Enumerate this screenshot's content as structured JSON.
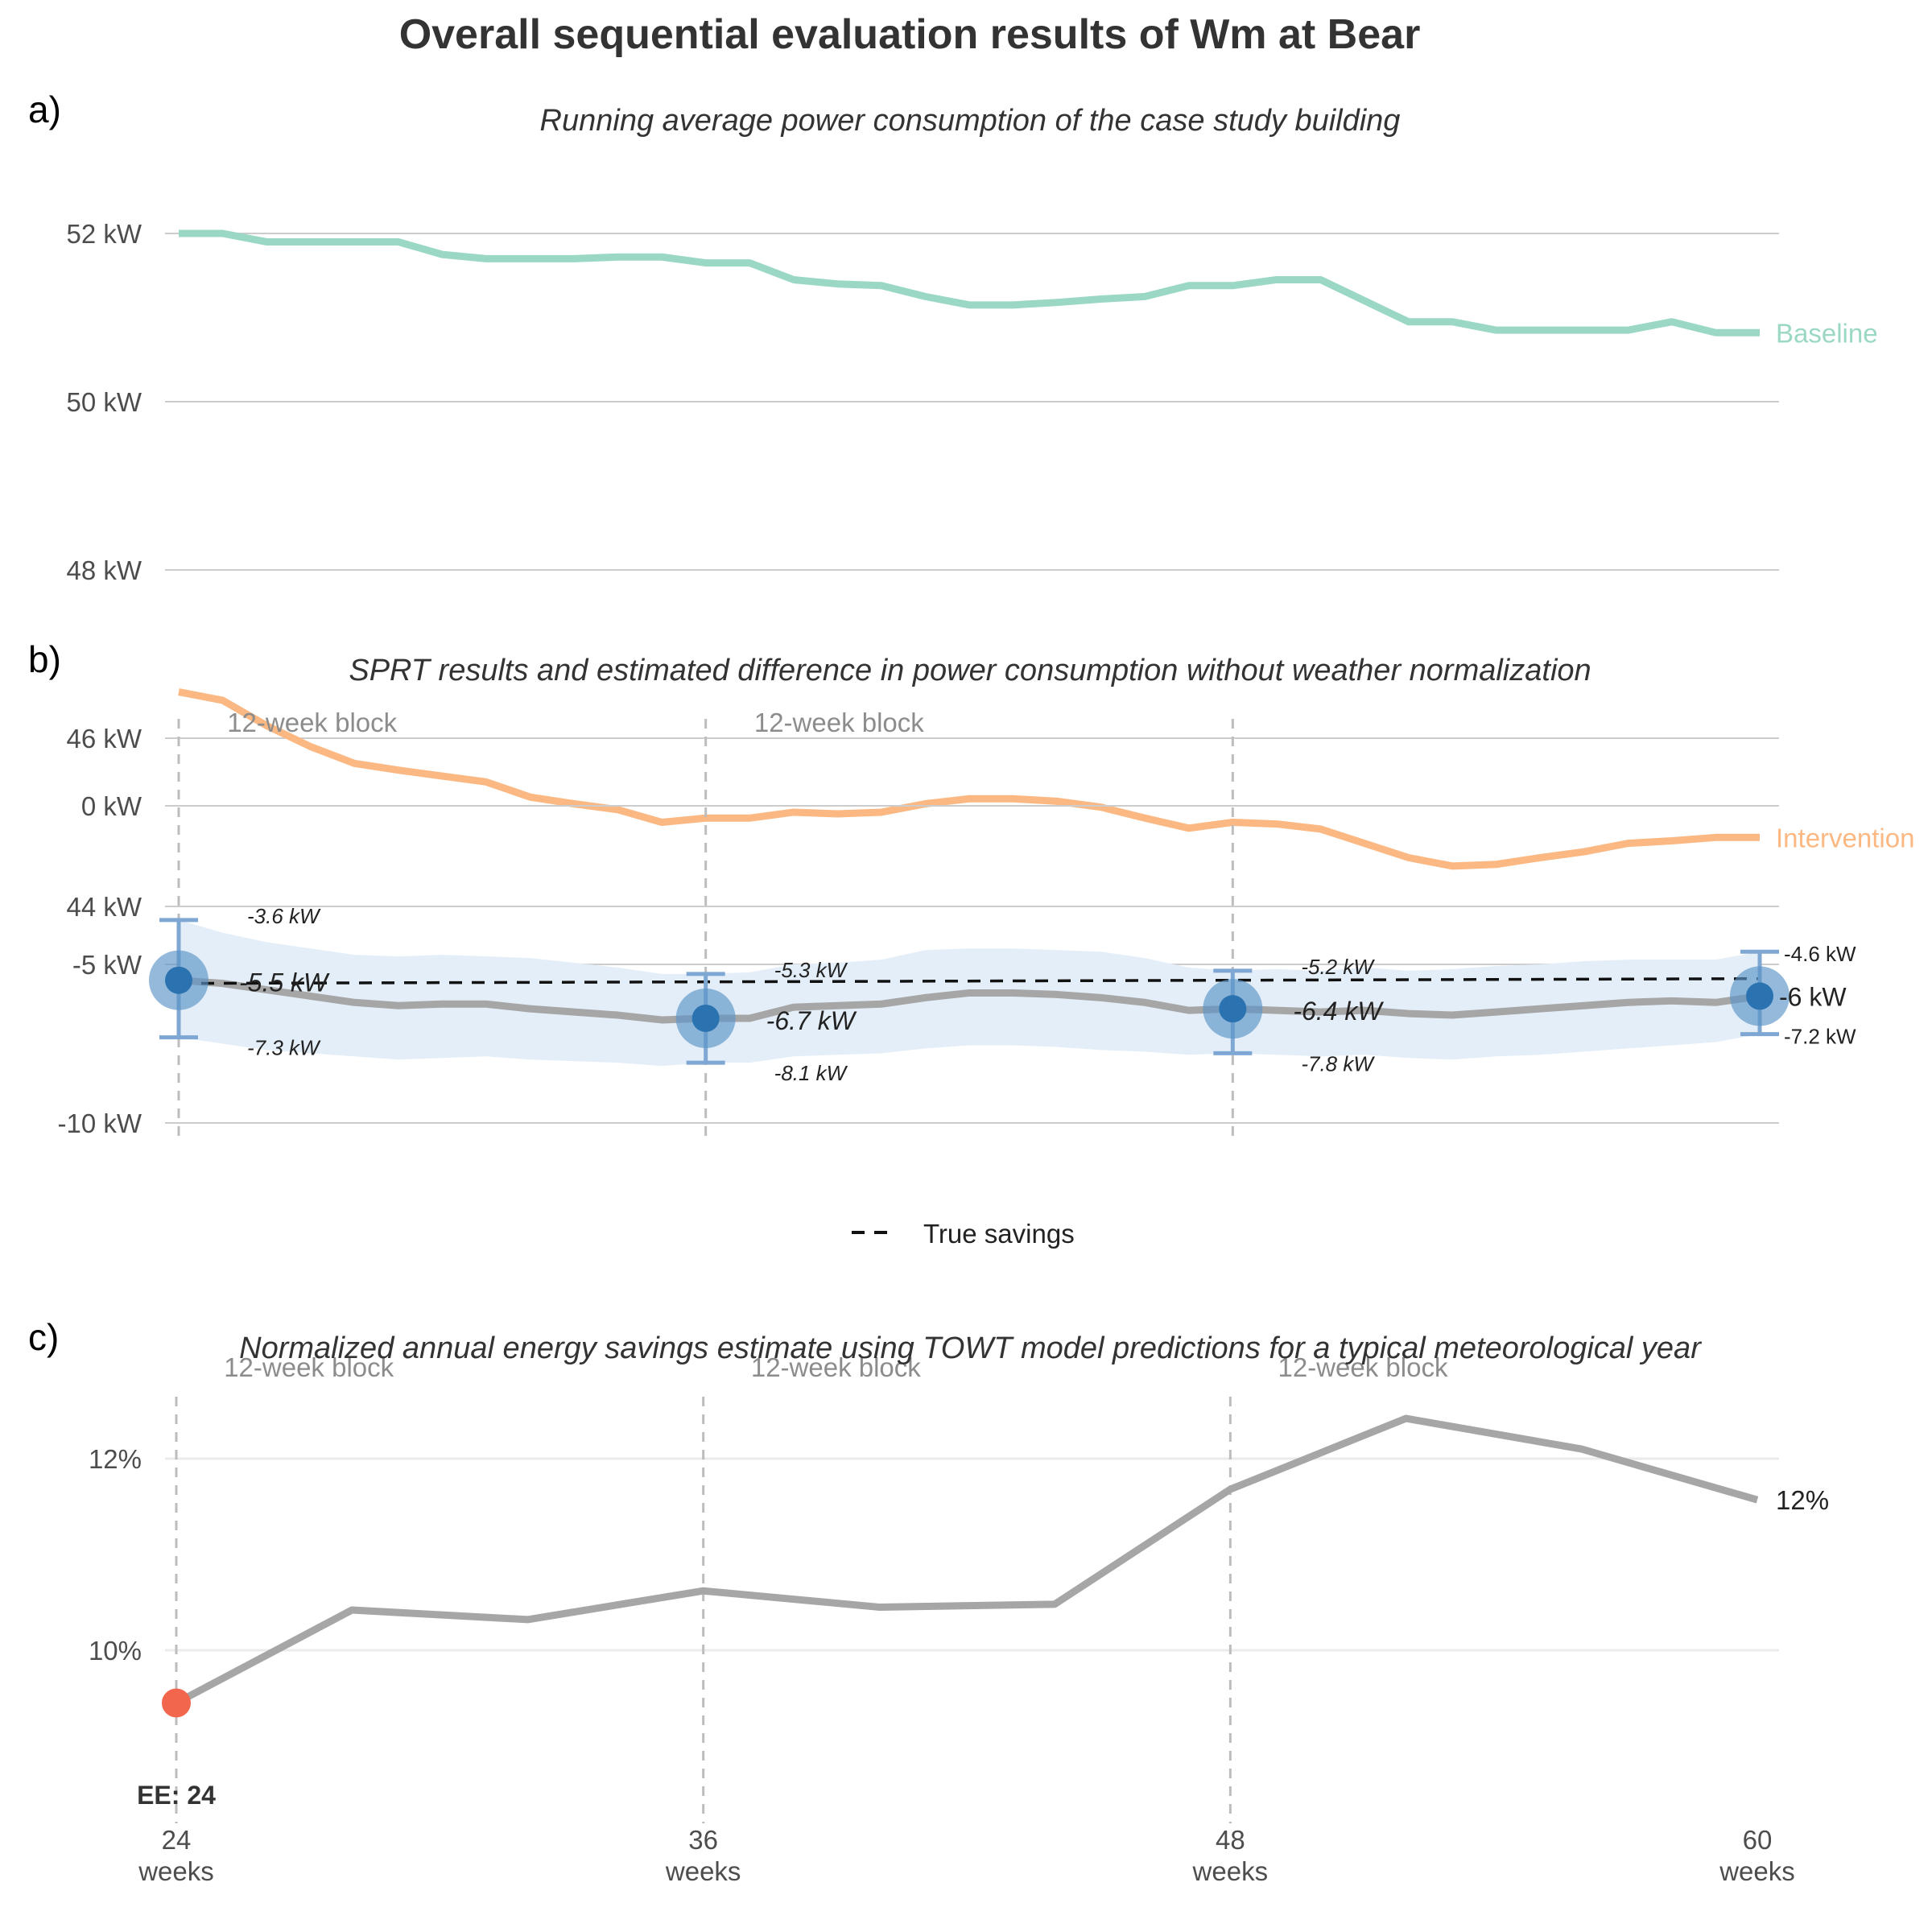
{
  "title": "Overall sequential evaluation results of Wm at Bear",
  "colors": {
    "baseline": "#9ad8c5",
    "intervention": "#fbb882",
    "running_estimate": "#a6a6a6",
    "ci_band": "#e3eef8",
    "sprt_point": "#2a72b0",
    "sprt_halo": "#5b93c6",
    "errorbar": "#7ea8d3",
    "true_savings": "#111111",
    "early_end_point": "#f2664d"
  },
  "x_axis": {
    "ticks": [
      {
        "value": 24,
        "label": "24",
        "unit": "weeks"
      },
      {
        "value": 36,
        "label": "36",
        "unit": "weeks"
      },
      {
        "value": 48,
        "label": "48",
        "unit": "weeks"
      },
      {
        "value": 60,
        "label": "60",
        "unit": "weeks"
      }
    ]
  },
  "panels": {
    "a": {
      "tag": "a)",
      "subtitle": "Running average power consumption of the case study building"
    },
    "b": {
      "tag": "b)",
      "subtitle": "SPRT results and estimated difference in power consumption without weather normalization",
      "legend_label": "True savings"
    },
    "c": {
      "tag": "c)",
      "subtitle": "Normalized annual energy savings estimate using TOWT model predictions for a typical meteorological year",
      "early_end_label": "EE: 24"
    }
  },
  "chart_data": [
    {
      "type": "line",
      "panel": "a",
      "title": "Running average power consumption of the case study building",
      "xlim": [
        24,
        60
      ],
      "ylim": [
        43.5,
        53
      ],
      "y_ticks": [
        {
          "value": 44,
          "label": "44 kW"
        },
        {
          "value": 46,
          "label": "46 kW"
        },
        {
          "value": 48,
          "label": "48 kW"
        },
        {
          "value": 50,
          "label": "50 kW"
        },
        {
          "value": 52,
          "label": "52 kW"
        }
      ],
      "x": [
        24,
        25,
        26,
        27,
        28,
        29,
        30,
        31,
        32,
        33,
        34,
        35,
        36,
        37,
        38,
        39,
        40,
        41,
        42,
        43,
        44,
        45,
        46,
        47,
        48,
        49,
        50,
        51,
        52,
        53,
        54,
        55,
        56,
        57,
        58,
        59,
        60
      ],
      "series": [
        {
          "name": "Baseline",
          "end_label": "Baseline",
          "values": [
            52.0,
            52.0,
            51.9,
            51.9,
            51.9,
            51.9,
            51.75,
            51.7,
            51.7,
            51.7,
            51.72,
            51.72,
            51.65,
            51.65,
            51.45,
            51.4,
            51.38,
            51.25,
            51.15,
            51.15,
            51.18,
            51.22,
            51.25,
            51.38,
            51.38,
            51.45,
            51.45,
            51.2,
            50.95,
            50.95,
            50.85,
            50.85,
            50.85,
            50.85,
            50.95,
            50.82,
            50.82
          ]
        },
        {
          "name": "Intervention",
          "end_label": "Intervention",
          "values": [
            46.55,
            46.45,
            46.15,
            45.9,
            45.7,
            45.62,
            45.55,
            45.48,
            45.3,
            45.22,
            45.15,
            45.0,
            45.05,
            45.05,
            45.12,
            45.1,
            45.12,
            45.22,
            45.28,
            45.28,
            45.25,
            45.18,
            45.05,
            44.93,
            45.0,
            44.98,
            44.92,
            44.75,
            44.58,
            44.48,
            44.5,
            44.58,
            44.65,
            44.75,
            44.78,
            44.82,
            44.82
          ]
        }
      ]
    },
    {
      "type": "line",
      "panel": "b",
      "title": "SPRT results and estimated difference in power consumption without weather normalization",
      "xlim": [
        24,
        60
      ],
      "ylim": [
        -11,
        2.5
      ],
      "y_ticks": [
        {
          "value": -10,
          "label": "-10 kW"
        },
        {
          "value": -5,
          "label": "-5 kW"
        },
        {
          "value": 0,
          "label": "0 kW"
        }
      ],
      "block_label": "12-week block",
      "block_label_x": [
        27,
        39
      ],
      "x": [
        24,
        25,
        26,
        27,
        28,
        29,
        30,
        31,
        32,
        33,
        34,
        35,
        36,
        37,
        38,
        39,
        40,
        41,
        42,
        43,
        44,
        45,
        46,
        47,
        48,
        49,
        50,
        51,
        52,
        53,
        54,
        55,
        56,
        57,
        58,
        59,
        60
      ],
      "series": [
        {
          "name": "Estimate",
          "values": [
            -5.5,
            -5.6,
            -5.8,
            -6.0,
            -6.2,
            -6.3,
            -6.25,
            -6.25,
            -6.4,
            -6.5,
            -6.6,
            -6.75,
            -6.7,
            -6.7,
            -6.35,
            -6.3,
            -6.25,
            -6.05,
            -5.9,
            -5.9,
            -5.95,
            -6.05,
            -6.2,
            -6.45,
            -6.4,
            -6.45,
            -6.5,
            -6.45,
            -6.55,
            -6.6,
            -6.5,
            -6.4,
            -6.3,
            -6.2,
            -6.15,
            -6.2,
            -6.0
          ]
        },
        {
          "name": "CI lower",
          "values": [
            -7.3,
            -7.5,
            -7.7,
            -7.8,
            -7.9,
            -8.0,
            -7.95,
            -7.9,
            -8.0,
            -8.05,
            -8.1,
            -8.2,
            -8.1,
            -8.1,
            -7.9,
            -7.85,
            -7.8,
            -7.65,
            -7.55,
            -7.55,
            -7.6,
            -7.7,
            -7.75,
            -7.85,
            -7.8,
            -7.85,
            -7.9,
            -7.85,
            -7.95,
            -8.0,
            -7.9,
            -7.85,
            -7.75,
            -7.65,
            -7.55,
            -7.45,
            -7.2
          ]
        },
        {
          "name": "CI upper",
          "values": [
            -3.6,
            -4.0,
            -4.3,
            -4.5,
            -4.7,
            -4.75,
            -4.7,
            -4.75,
            -4.8,
            -4.95,
            -5.1,
            -5.3,
            -5.3,
            -5.25,
            -5.0,
            -4.95,
            -4.85,
            -4.55,
            -4.5,
            -4.5,
            -4.55,
            -4.6,
            -4.8,
            -5.1,
            -5.2,
            -5.15,
            -5.2,
            -5.1,
            -5.2,
            -5.15,
            -5.05,
            -5.0,
            -4.9,
            -4.85,
            -4.85,
            -4.85,
            -4.6
          ]
        },
        {
          "name": "True savings",
          "x": [
            24,
            60
          ],
          "values": [
            -5.6,
            -5.45
          ]
        }
      ],
      "sprt_points": [
        {
          "x": 24,
          "estimate": -5.5,
          "lower": -7.3,
          "upper": -3.6,
          "label": "-5.5 kW",
          "lower_label": "-7.3 kW",
          "upper_label": "-3.6 kW"
        },
        {
          "x": 36,
          "estimate": -6.7,
          "lower": -8.1,
          "upper": -5.3,
          "label": "-6.7 kW",
          "lower_label": "-8.1 kW",
          "upper_label": "-5.3 kW"
        },
        {
          "x": 48,
          "estimate": -6.4,
          "lower": -7.8,
          "upper": -5.2,
          "label": "-6.4 kW",
          "lower_label": "-7.8 kW",
          "upper_label": "-5.2 kW"
        },
        {
          "x": 60,
          "estimate": -6.0,
          "lower": -7.2,
          "upper": -4.6,
          "label": "-6 kW",
          "lower_label": "-7.2 kW",
          "upper_label": "-4.6 kW"
        }
      ]
    },
    {
      "type": "line",
      "panel": "c",
      "title": "Normalized annual energy savings estimate using TOWT model predictions for a typical meteorological year",
      "xlim": [
        24,
        60
      ],
      "ylim": [
        8.3,
        13.0
      ],
      "y_ticks": [
        {
          "value": 10,
          "label": "10%"
        },
        {
          "value": 12,
          "label": "12%"
        }
      ],
      "block_label": "12-week block",
      "block_label_x": [
        27,
        39,
        51
      ],
      "x": [
        24,
        28,
        32,
        36,
        40,
        44,
        48,
        52,
        56,
        60
      ],
      "series": [
        {
          "name": "Savings",
          "end_label": "12%",
          "values": [
            9.45,
            10.42,
            10.32,
            10.62,
            10.45,
            10.48,
            11.68,
            12.42,
            12.1,
            11.57
          ]
        }
      ],
      "early_end_point": {
        "x": 24,
        "value": 9.45,
        "label": "EE: 24"
      }
    }
  ]
}
